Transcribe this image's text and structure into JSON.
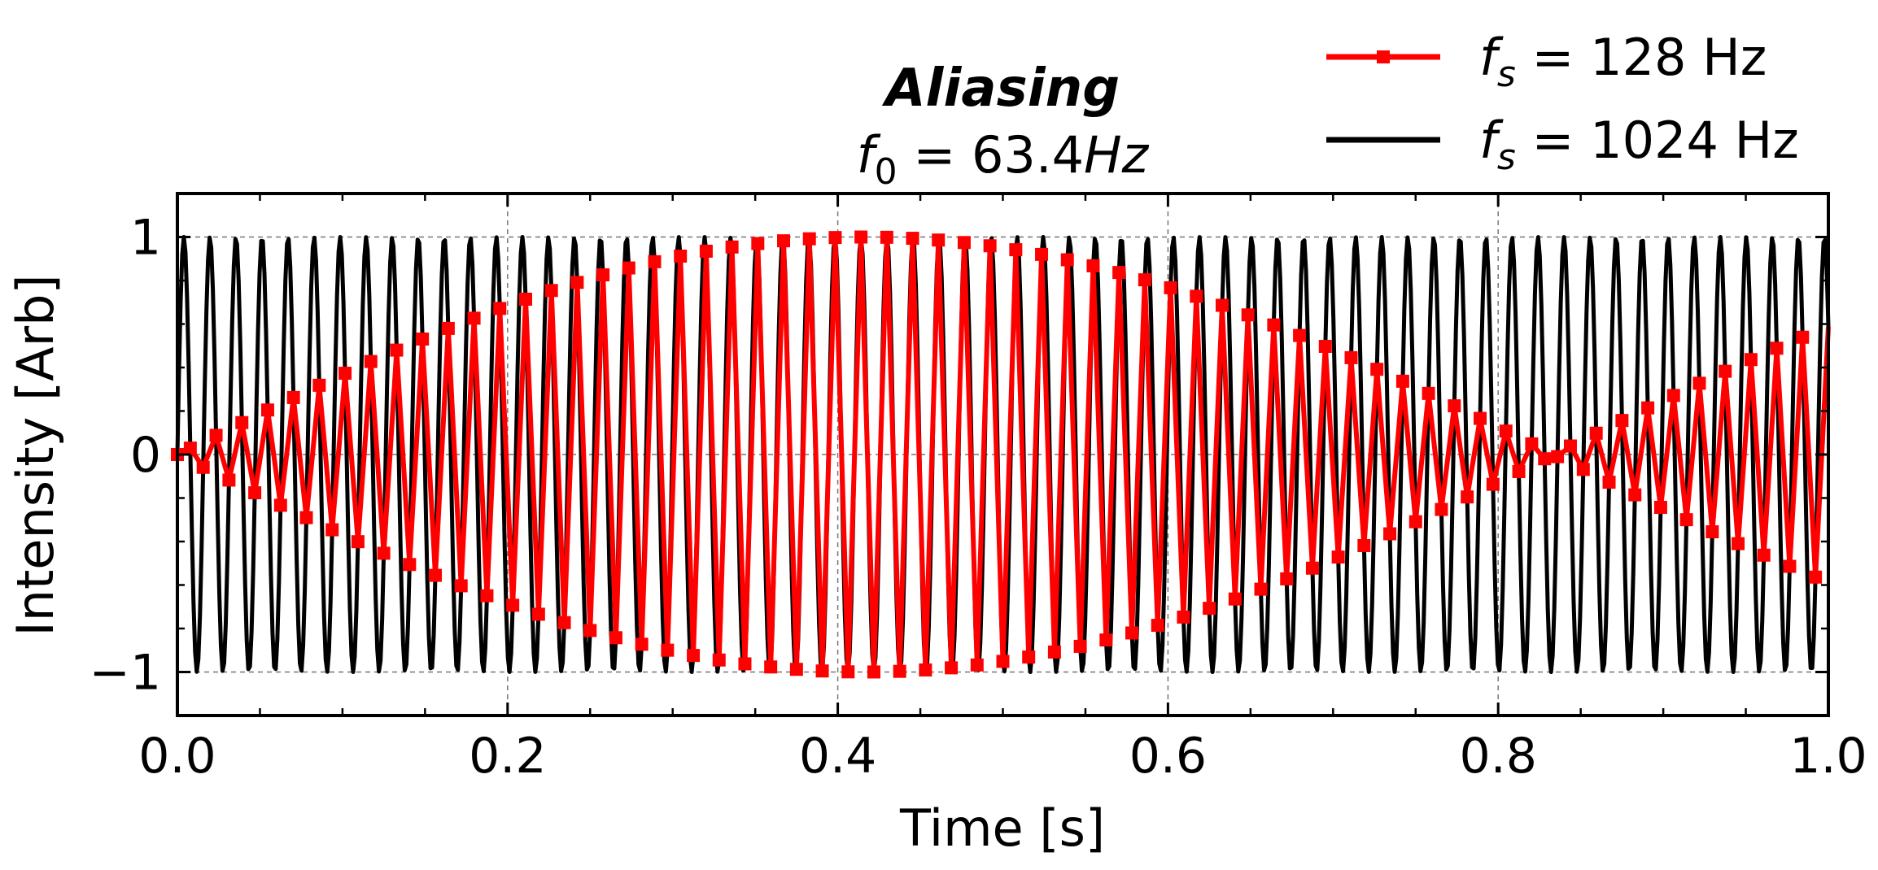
{
  "chart_data": {
    "type": "line",
    "title": "Aliasing",
    "subtitle": {
      "prefix": "f",
      "subscript": "0",
      "text": " = 63.4",
      "unit": "Hz"
    },
    "xlabel": "Time [s]",
    "ylabel": "Intensity [Arb]",
    "xlim": [
      0.0,
      1.0
    ],
    "ylim": [
      -1.2,
      1.2
    ],
    "x_ticks": [
      0.0,
      0.2,
      0.4,
      0.6,
      0.8,
      1.0
    ],
    "x_tick_labels": [
      "0.0",
      "0.2",
      "0.4",
      "0.6",
      "0.8",
      "1.0"
    ],
    "y_ticks": [
      -1,
      0,
      1
    ],
    "y_tick_labels": [
      "−1",
      "0",
      "1"
    ],
    "grid": true,
    "legend_position": "top-right",
    "signal": {
      "function": "sin",
      "frequency_hz": 63.4,
      "amplitude": 1
    },
    "series": [
      {
        "name": "f_s = 128 Hz",
        "legend_prefix": "f",
        "legend_sub": "s",
        "legend_text": " =  128 Hz",
        "sample_rate_hz": 128,
        "color": "#ff0000",
        "marker": "square",
        "order": 2
      },
      {
        "name": "f_s = 1024 Hz",
        "legend_prefix": "f",
        "legend_sub": "s",
        "legend_text": " =  1024 Hz",
        "sample_rate_hz": 1024,
        "color": "#000000",
        "marker": "none",
        "order": 1
      }
    ]
  }
}
